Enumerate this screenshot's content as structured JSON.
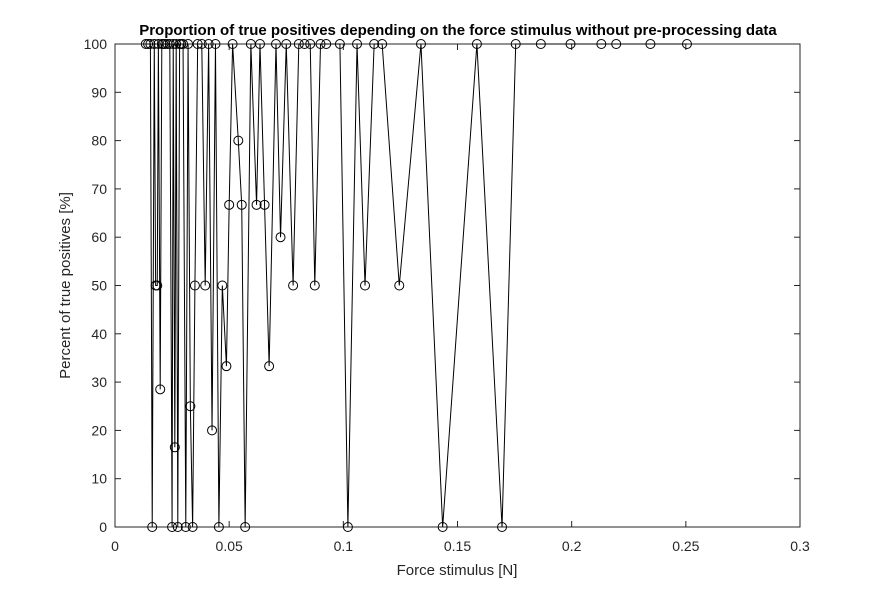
{
  "chart_data": {
    "type": "line",
    "title": "Proportion of true positives depending on the force stimulus without pre-processing data",
    "xlabel": "Force stimulus [N]",
    "ylabel": "Percent of true positives [%]",
    "xlim": [
      0,
      0.3
    ],
    "ylim": [
      0,
      100
    ],
    "xticks": [
      0,
      0.05,
      0.1,
      0.15,
      0.2,
      0.25,
      0.3
    ],
    "xtick_labels": [
      "0",
      "0.05",
      "0.1",
      "0.15",
      "0.2",
      "0.25",
      "0.3"
    ],
    "yticks": [
      0,
      10,
      20,
      30,
      40,
      50,
      60,
      70,
      80,
      90,
      100
    ],
    "ytick_labels": [
      "0",
      "10",
      "20",
      "30",
      "40",
      "50",
      "60",
      "70",
      "80",
      "90",
      "100"
    ],
    "grid": false,
    "marker": "circle",
    "color": "#000000",
    "x": [
      0.0135,
      0.0145,
      0.0155,
      0.0163,
      0.0172,
      0.0178,
      0.0185,
      0.019,
      0.0198,
      0.0205,
      0.0212,
      0.022,
      0.023,
      0.024,
      0.025,
      0.0255,
      0.0262,
      0.0268,
      0.0275,
      0.0283,
      0.029,
      0.0298,
      0.031,
      0.032,
      0.033,
      0.034,
      0.035,
      0.0362,
      0.038,
      0.0395,
      0.041,
      0.0425,
      0.044,
      0.0455,
      0.047,
      0.0488,
      0.05,
      0.0515,
      0.054,
      0.0555,
      0.057,
      0.0595,
      0.062,
      0.0635,
      0.0655,
      0.0675,
      0.0705,
      0.0725,
      0.075,
      0.078,
      0.0805,
      0.083,
      0.0855,
      0.0875,
      0.09,
      0.0925,
      0.0985,
      0.102,
      0.106,
      0.1095,
      0.1135,
      0.117,
      0.1245,
      0.134,
      0.1435,
      0.1585,
      0.1695,
      0.1755,
      0.1865,
      0.1995,
      0.213,
      0.2195,
      0.2345,
      0.2505
    ],
    "y": [
      100,
      100,
      100,
      0,
      100,
      50,
      50,
      100,
      28.5,
      100,
      100,
      100,
      100,
      100,
      0,
      100,
      16.5,
      100,
      0,
      100,
      100,
      100,
      0,
      100,
      25,
      0,
      50,
      100,
      100,
      50,
      100,
      20,
      100,
      0,
      50,
      33.3,
      66.7,
      100,
      80,
      66.7,
      0,
      100,
      66.7,
      100,
      66.7,
      33.3,
      100,
      60,
      100,
      50,
      100,
      100,
      100,
      50,
      100,
      100,
      100,
      0,
      100,
      50,
      100,
      100,
      50,
      100,
      0,
      100,
      0,
      100,
      100,
      100,
      100,
      100,
      100,
      100
    ]
  }
}
